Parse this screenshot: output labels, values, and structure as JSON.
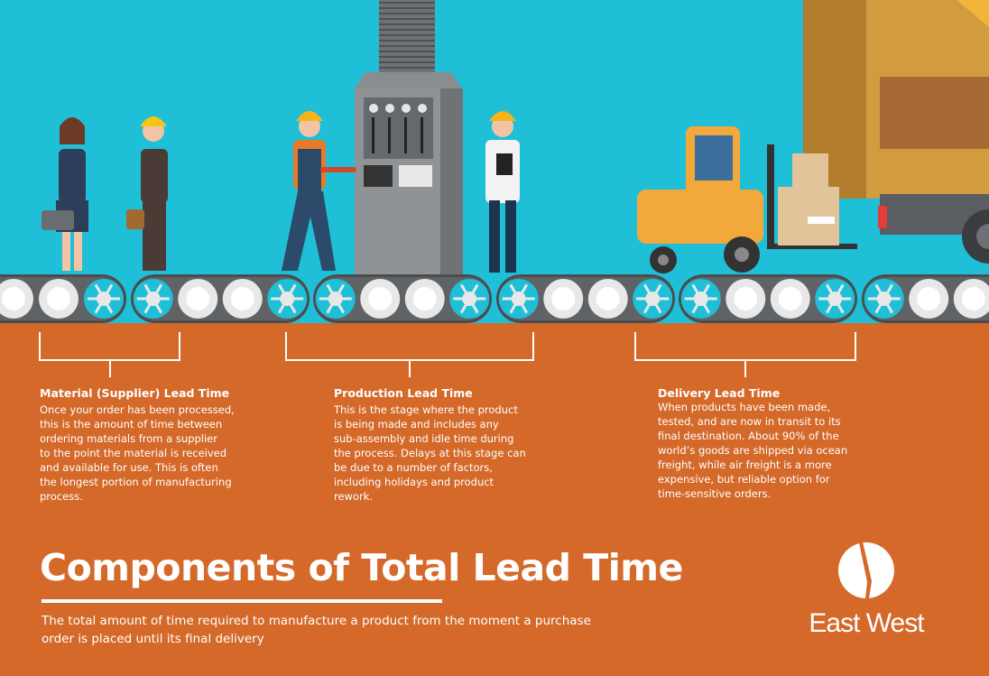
{
  "colors": {
    "sky": "#1fbfd7",
    "background": "#d4692a",
    "text": "#ffffff",
    "conveyor_gear": "#1fbfd7",
    "conveyor_roller": "#e8e8e8"
  },
  "stages": [
    {
      "title": "Material (Supplier) Lead Time",
      "lines": [
        "Once your order has been processed,",
        "this is the amount of time between",
        "ordering materials from a supplier",
        "to the point the material is received",
        "and available for use. This is often",
        "the longest portion of manufacturing",
        "process."
      ]
    },
    {
      "title": "Production Lead Time",
      "lines": [
        "This is the stage where the product",
        "is being made and includes any",
        "sub-assembly and idle time during",
        "the process. Delays at this stage can",
        "be due to a number of factors,",
        "including holidays and product",
        "rework."
      ]
    },
    {
      "title": "Delivery Lead Time",
      "lines": [
        "When products have been made,",
        "tested, and are now in transit to its",
        "final destination. About 90% of the",
        "world’s goods are shipped via ocean",
        "freight, while air freight is a more",
        "expensive, but reliable option for",
        "time-sensitive orders."
      ]
    }
  ],
  "title": "Components of Total Lead Time",
  "subtitle_lines": [
    "The total amount of time required to manufacture a product from the moment a purchase",
    "order is placed until its final delivery"
  ],
  "logo": {
    "name": "East West",
    "icon": "split-circle-logo"
  },
  "illustration": {
    "icons": [
      "businesswoman-handshake",
      "worker-hardhat",
      "factory-machine",
      "engineer-clipboard",
      "forklift",
      "boxes",
      "truck",
      "conveyor-belt"
    ]
  }
}
